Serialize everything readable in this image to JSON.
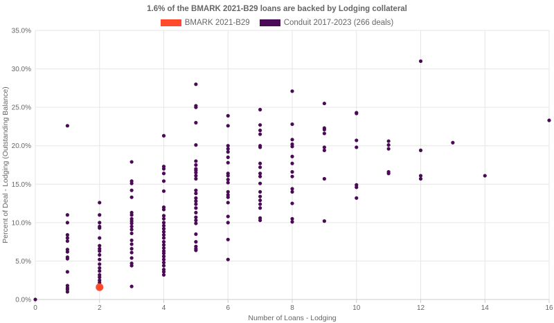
{
  "chart_data": {
    "type": "scatter",
    "title": "1.6% of the BMARK 2021-B29 loans are backed by Lodging collateral",
    "xlabel": "Number of Loans - Lodging",
    "ylabel": "Percent of Deal - Lodging (Outstanding Balance)",
    "xlim": [
      0,
      16
    ],
    "ylim": [
      0,
      35
    ],
    "x_ticks": [
      "0",
      "2",
      "4",
      "6",
      "8",
      "10",
      "12",
      "14",
      "16"
    ],
    "y_ticks": [
      "0.0%",
      "5.0%",
      "10.0%",
      "15.0%",
      "20.0%",
      "25.0%",
      "30.0%",
      "35.0%"
    ],
    "grid": true,
    "legend_position": "top-center",
    "series": [
      {
        "name": "BMARK 2021-B29",
        "color": "#ff4a2b",
        "marker": "large-circle",
        "points": [
          [
            2,
            1.6
          ]
        ]
      },
      {
        "name": "Conduit 2017-2023 (266 deals)",
        "color": "#4a0a55",
        "marker": "small-circle",
        "points": [
          [
            0,
            0.0
          ],
          [
            1,
            22.6
          ],
          [
            1,
            11.0
          ],
          [
            1,
            10.0
          ],
          [
            1,
            8.4
          ],
          [
            1,
            8.0
          ],
          [
            1,
            7.6
          ],
          [
            1,
            6.5
          ],
          [
            1,
            6.2
          ],
          [
            1,
            5.5
          ],
          [
            1,
            5.3
          ],
          [
            1,
            3.6
          ],
          [
            1,
            1.8
          ],
          [
            1,
            1.5
          ],
          [
            1,
            1.3
          ],
          [
            1,
            1.0
          ],
          [
            2,
            12.6
          ],
          [
            2,
            11.0
          ],
          [
            2,
            10.0
          ],
          [
            2,
            9.5
          ],
          [
            2,
            9.3
          ],
          [
            2,
            8.0
          ],
          [
            2,
            7.0
          ],
          [
            2,
            6.6
          ],
          [
            2,
            6.3
          ],
          [
            2,
            5.8
          ],
          [
            2,
            5.2
          ],
          [
            2,
            4.6
          ],
          [
            2,
            4.1
          ],
          [
            2,
            3.7
          ],
          [
            2,
            3.2
          ],
          [
            2,
            2.9
          ],
          [
            2,
            2.5
          ],
          [
            2,
            2.2
          ],
          [
            3,
            17.9
          ],
          [
            3,
            15.4
          ],
          [
            3,
            15.1
          ],
          [
            3,
            14.2
          ],
          [
            3,
            13.3
          ],
          [
            3,
            11.3
          ],
          [
            3,
            11.0
          ],
          [
            3,
            10.5
          ],
          [
            3,
            10.2
          ],
          [
            3,
            9.9
          ],
          [
            3,
            9.5
          ],
          [
            3,
            9.1
          ],
          [
            3,
            8.6
          ],
          [
            3,
            7.7
          ],
          [
            3,
            7.2
          ],
          [
            3,
            6.6
          ],
          [
            3,
            6.1
          ],
          [
            3,
            5.4
          ],
          [
            3,
            4.7
          ],
          [
            3,
            4.4
          ],
          [
            3,
            1.7
          ],
          [
            4,
            21.3
          ],
          [
            4,
            17.3
          ],
          [
            4,
            17.0
          ],
          [
            4,
            16.4
          ],
          [
            4,
            15.4
          ],
          [
            4,
            14.1
          ],
          [
            4,
            12.0
          ],
          [
            4,
            11.7
          ],
          [
            4,
            10.9
          ],
          [
            4,
            10.5
          ],
          [
            4,
            10.0
          ],
          [
            4,
            9.6
          ],
          [
            4,
            9.2
          ],
          [
            4,
            8.8
          ],
          [
            4,
            8.4
          ],
          [
            4,
            8.0
          ],
          [
            4,
            7.5
          ],
          [
            4,
            7.1
          ],
          [
            4,
            6.7
          ],
          [
            4,
            6.3
          ],
          [
            4,
            6.0
          ],
          [
            4,
            5.6
          ],
          [
            4,
            5.2
          ],
          [
            4,
            4.8
          ],
          [
            4,
            4.4
          ],
          [
            4,
            3.9
          ],
          [
            4,
            3.6
          ],
          [
            4,
            3.2
          ],
          [
            5,
            28.0
          ],
          [
            5,
            25.2
          ],
          [
            5,
            25.0
          ],
          [
            5,
            23.0
          ],
          [
            5,
            20.1
          ],
          [
            5,
            18.0
          ],
          [
            5,
            17.5
          ],
          [
            5,
            17.0
          ],
          [
            5,
            16.8
          ],
          [
            5,
            16.5
          ],
          [
            5,
            16.1
          ],
          [
            5,
            15.7
          ],
          [
            5,
            14.2
          ],
          [
            5,
            13.8
          ],
          [
            5,
            13.2
          ],
          [
            5,
            12.8
          ],
          [
            5,
            12.4
          ],
          [
            5,
            11.9
          ],
          [
            5,
            11.3
          ],
          [
            5,
            10.7
          ],
          [
            5,
            10.3
          ],
          [
            5,
            9.9
          ],
          [
            5,
            8.5
          ],
          [
            5,
            7.5
          ],
          [
            5,
            6.9
          ],
          [
            5,
            6.6
          ],
          [
            5,
            6.4
          ],
          [
            6,
            23.9
          ],
          [
            6,
            22.6
          ],
          [
            6,
            20.0
          ],
          [
            6,
            19.6
          ],
          [
            6,
            19.2
          ],
          [
            6,
            18.5
          ],
          [
            6,
            17.8
          ],
          [
            6,
            16.4
          ],
          [
            6,
            16.1
          ],
          [
            6,
            15.6
          ],
          [
            6,
            15.2
          ],
          [
            6,
            14.0
          ],
          [
            6,
            13.6
          ],
          [
            6,
            13.3
          ],
          [
            6,
            12.6
          ],
          [
            6,
            10.8
          ],
          [
            6,
            10.0
          ],
          [
            6,
            7.8
          ],
          [
            6,
            5.2
          ],
          [
            7,
            24.7
          ],
          [
            7,
            22.7
          ],
          [
            7,
            22.0
          ],
          [
            7,
            21.5
          ],
          [
            7,
            20.0
          ],
          [
            7,
            19.8
          ],
          [
            7,
            17.7
          ],
          [
            7,
            17.2
          ],
          [
            7,
            16.4
          ],
          [
            7,
            16.0
          ],
          [
            7,
            15.1
          ],
          [
            7,
            14.0
          ],
          [
            7,
            13.4
          ],
          [
            7,
            12.9
          ],
          [
            7,
            12.4
          ],
          [
            7,
            11.9
          ],
          [
            7,
            10.6
          ],
          [
            7,
            10.3
          ],
          [
            8,
            27.1
          ],
          [
            8,
            22.8
          ],
          [
            8,
            20.8
          ],
          [
            8,
            20.2
          ],
          [
            8,
            19.9
          ],
          [
            8,
            18.6
          ],
          [
            8,
            17.7
          ],
          [
            8,
            16.6
          ],
          [
            8,
            16.0
          ],
          [
            8,
            14.4
          ],
          [
            8,
            14.0
          ],
          [
            8,
            12.5
          ],
          [
            8,
            10.5
          ],
          [
            8,
            10.1
          ],
          [
            9,
            25.5
          ],
          [
            9,
            22.3
          ],
          [
            9,
            22.1
          ],
          [
            9,
            21.6
          ],
          [
            9,
            19.8
          ],
          [
            9,
            19.4
          ],
          [
            9,
            15.7
          ],
          [
            9,
            10.2
          ],
          [
            10,
            24.3
          ],
          [
            10,
            24.2
          ],
          [
            10,
            20.7
          ],
          [
            10,
            19.8
          ],
          [
            10,
            14.9
          ],
          [
            10,
            14.6
          ],
          [
            10,
            13.2
          ],
          [
            11,
            20.6
          ],
          [
            11,
            20.1
          ],
          [
            11,
            19.6
          ],
          [
            11,
            16.6
          ],
          [
            11,
            16.4
          ],
          [
            12,
            31.0
          ],
          [
            12,
            19.4
          ],
          [
            12,
            16.1
          ],
          [
            12,
            15.7
          ],
          [
            13,
            20.4
          ],
          [
            14,
            16.1
          ],
          [
            16,
            23.3
          ]
        ]
      }
    ]
  }
}
